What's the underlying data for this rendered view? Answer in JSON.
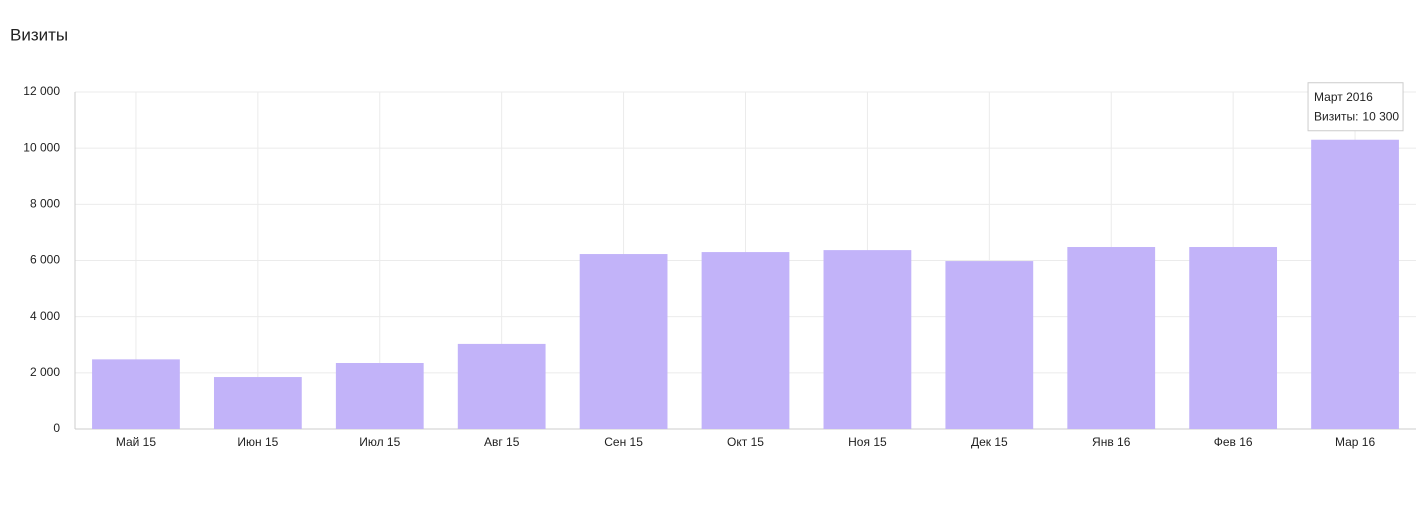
{
  "chart_data": {
    "type": "bar",
    "title": "Визиты",
    "categories": [
      "Май 15",
      "Июн 15",
      "Июл 15",
      "Авг 15",
      "Сен 15",
      "Окт 15",
      "Ноя 15",
      "Дек 15",
      "Янв 16",
      "Фев 16",
      "Мар 16"
    ],
    "values": [
      2480,
      1850,
      2350,
      3030,
      6230,
      6300,
      6370,
      5980,
      6480,
      6480,
      10300
    ],
    "color": "#c2b3f9",
    "ylim": [
      0,
      12000
    ],
    "yticks": [
      0,
      {
        "value": 2000,
        "label": "2 000"
      },
      {
        "value": 4000,
        "label": "4 000"
      },
      {
        "value": 6000,
        "label": "6 000"
      },
      {
        "value": 8000,
        "label": "8 000"
      },
      {
        "value": 10000,
        "label": "10 000"
      },
      {
        "value": 12000,
        "label": "12 000"
      }
    ],
    "grid": true,
    "tooltip": {
      "title": "Март 2016",
      "label": "Визиты:",
      "value_label": "10 300"
    }
  }
}
